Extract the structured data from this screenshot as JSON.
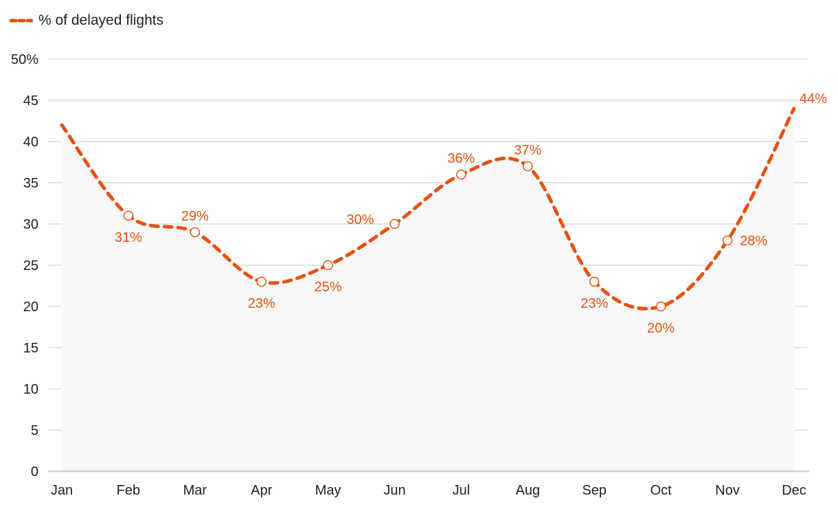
{
  "chart_data": {
    "type": "line",
    "categories": [
      "Jan",
      "Feb",
      "Mar",
      "Apr",
      "May",
      "Jun",
      "Jul",
      "Aug",
      "Sep",
      "Oct",
      "Nov",
      "Dec"
    ],
    "series": [
      {
        "name": "% of delayed flights",
        "values": [
          42,
          31,
          29,
          23,
          25,
          30,
          36,
          37,
          23,
          20,
          28,
          44
        ],
        "data_labels": [
          "",
          "31%",
          "29%",
          "23%",
          "25%",
          "30%",
          "36%",
          "37%",
          "23%",
          "20%",
          "28%",
          "44%"
        ]
      }
    ],
    "y_ticks": [
      "0",
      "5",
      "10",
      "15",
      "20",
      "25",
      "30",
      "35",
      "40",
      "45",
      "50%"
    ],
    "ylim": [
      0,
      50
    ],
    "grid": true,
    "legend_position": "top-left",
    "line_style": "dashed",
    "markers": "hollow-circle",
    "color": "#e8500e",
    "area_fill_color": "#f8f8f8",
    "gridline_color": "#dcdcdc"
  }
}
